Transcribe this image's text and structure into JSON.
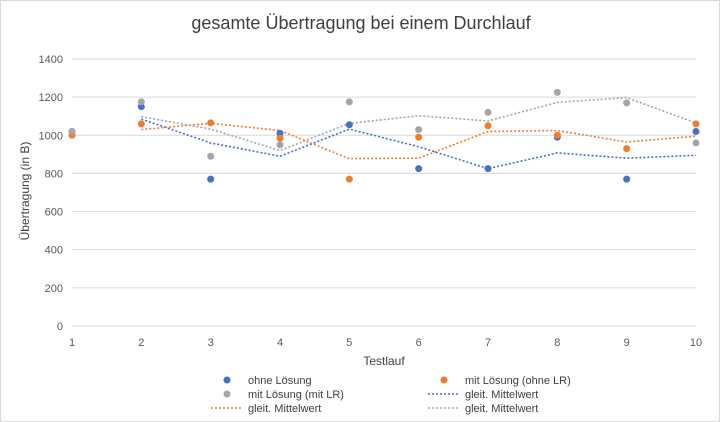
{
  "chart_data": {
    "type": "scatter",
    "title": "gesamte Übertragung bei einem Durchlauf",
    "xlabel": "Testlauf",
    "ylabel": "Übertragung (in B)",
    "xlim": [
      1,
      10
    ],
    "ylim": [
      0,
      1400
    ],
    "x_ticks": [
      "1",
      "2",
      "3",
      "4",
      "5",
      "6",
      "7",
      "8",
      "9",
      "10"
    ],
    "y_ticks": [
      "0",
      "200",
      "400",
      "600",
      "800",
      "1000",
      "1200",
      "1400"
    ],
    "grid": "horizontal",
    "legend_position": "bottom",
    "x": [
      1,
      2,
      3,
      4,
      5,
      6,
      7,
      8,
      9,
      10
    ],
    "series": [
      {
        "name": "ohne Lösung",
        "color": "#4472c4",
        "values": [
          1020,
          1150,
          770,
          1010,
          1055,
          825,
          825,
          990,
          770,
          1020
        ]
      },
      {
        "name": "mit Lösung (ohne LR)",
        "color": "#ed7d31",
        "values": [
          1000,
          1060,
          1065,
          985,
          770,
          990,
          1050,
          1000,
          930,
          1060
        ]
      },
      {
        "name": "mit Lösung (mit LR)",
        "color": "#a5a5a5",
        "values": [
          1020,
          1175,
          890,
          950,
          1175,
          1030,
          1120,
          1225,
          1170,
          960
        ]
      }
    ],
    "trendlines": [
      {
        "name": "gleit. Mittelwert",
        "color": "#4472c4",
        "series_index": 0
      },
      {
        "name": "gleit. Mittelwert",
        "color": "#ed7d31",
        "series_index": 1
      },
      {
        "name": "gleit. Mittelwert",
        "color": "#a5a5a5",
        "series_index": 2
      }
    ],
    "legend": [
      {
        "label": "ohne Lösung",
        "kind": "marker",
        "color": "#4472c4"
      },
      {
        "label": "mit Lösung (ohne LR)",
        "kind": "marker",
        "color": "#ed7d31"
      },
      {
        "label": "mit Lösung (mit LR)",
        "kind": "marker",
        "color": "#a5a5a5"
      },
      {
        "label": "gleit. Mittelwert",
        "kind": "line",
        "color": "#4472c4"
      },
      {
        "label": "gleit. Mittelwert",
        "kind": "line",
        "color": "#ed7d31"
      },
      {
        "label": "gleit. Mittelwert",
        "kind": "line",
        "color": "#a5a5a5"
      }
    ]
  }
}
